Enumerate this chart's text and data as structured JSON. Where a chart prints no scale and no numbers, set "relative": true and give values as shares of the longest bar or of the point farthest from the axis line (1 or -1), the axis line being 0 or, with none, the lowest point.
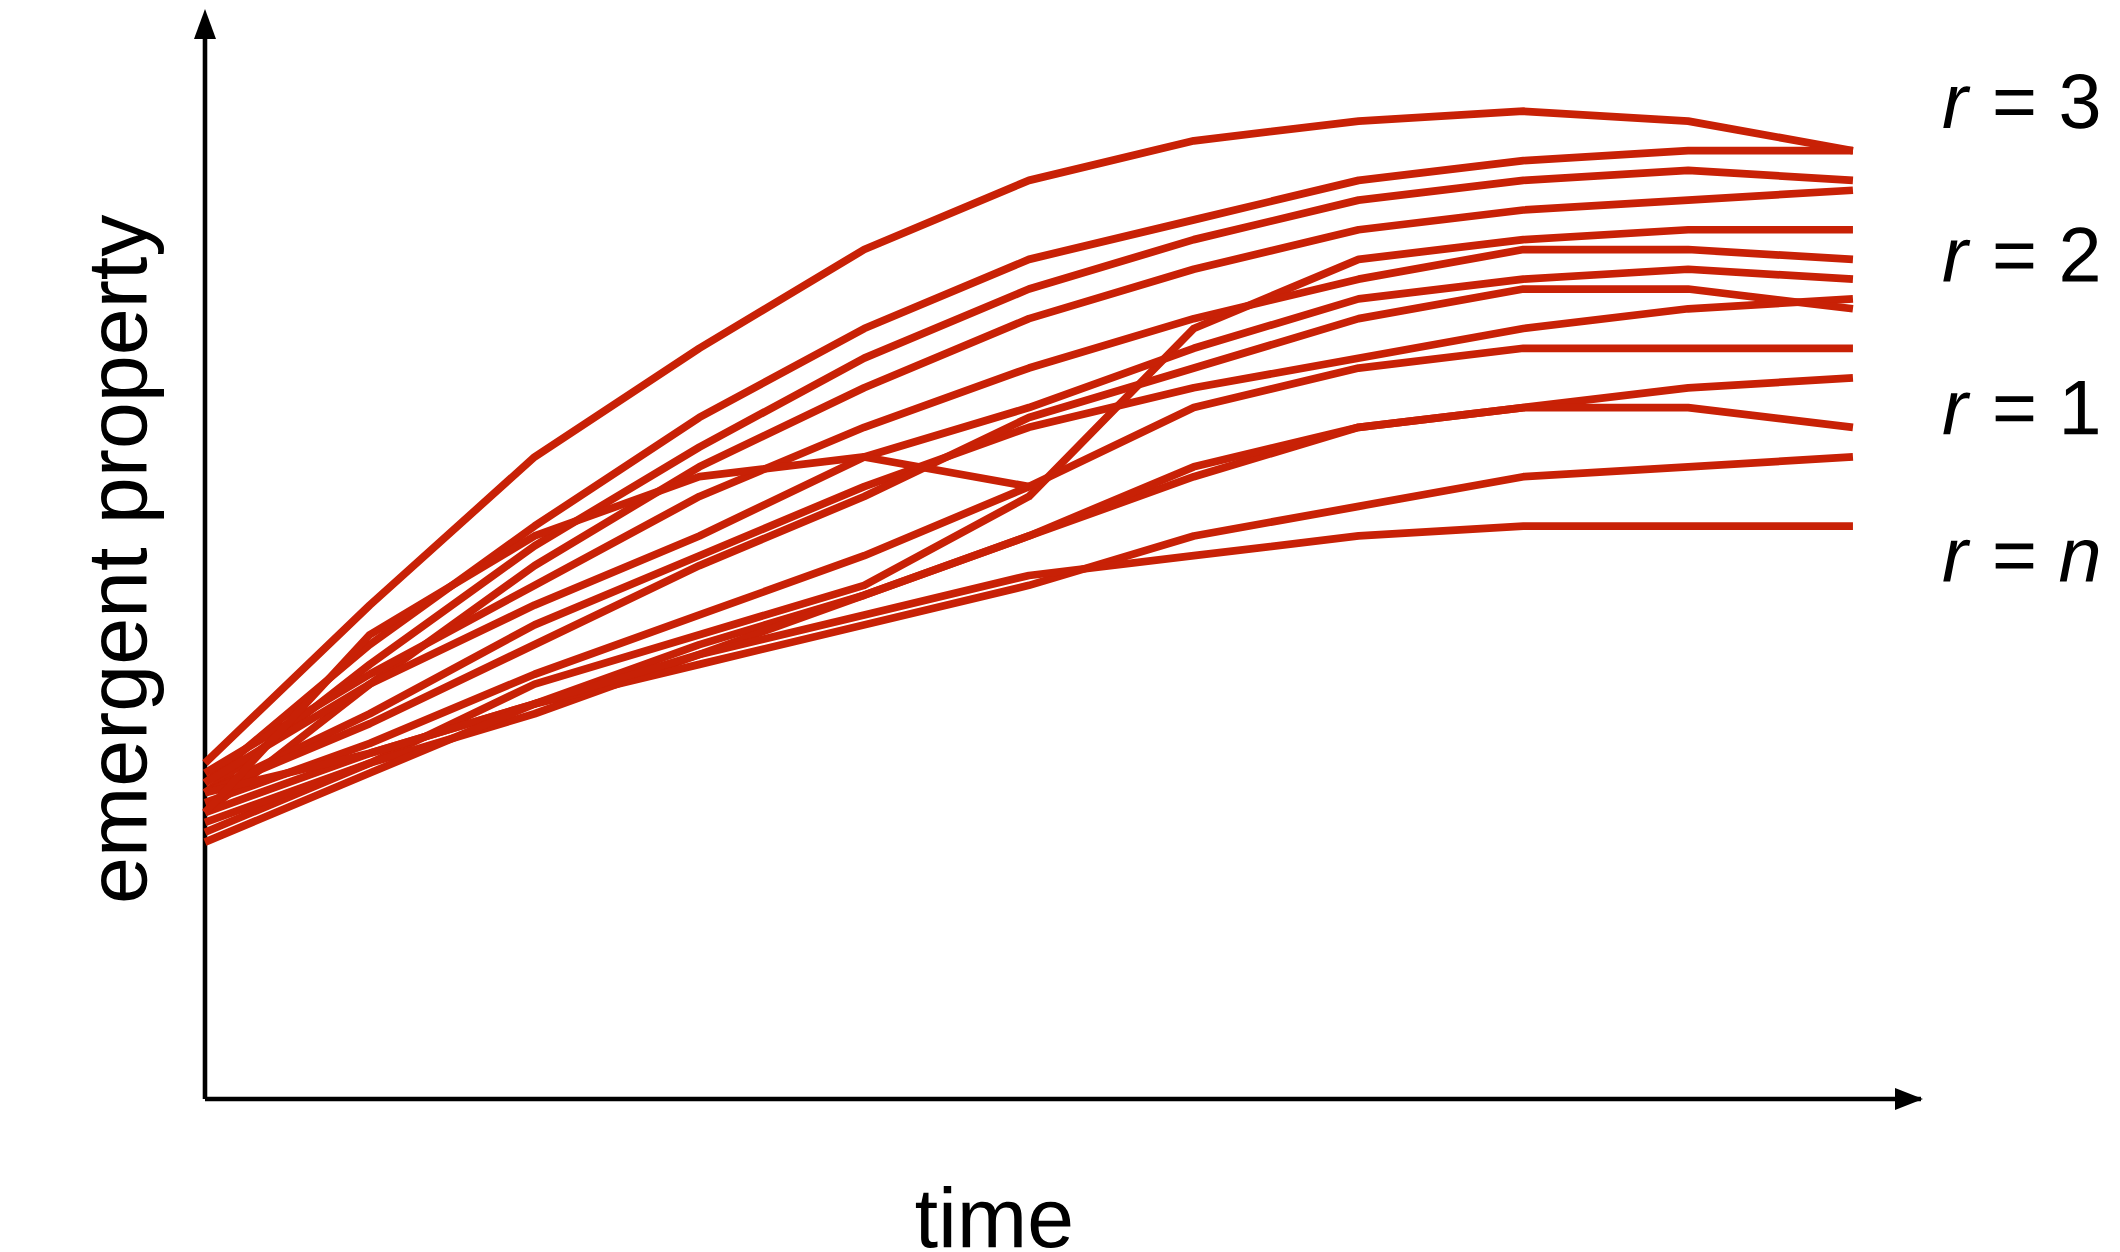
{
  "chart_data": {
    "type": "line",
    "relative": true,
    "xlabel": "time",
    "ylabel": "emergent property",
    "categories": [
      null,
      null,
      null,
      null,
      null,
      null,
      null,
      null,
      null,
      null,
      null
    ],
    "series": [
      {
        "color": "#c82106",
        "values": [
          0.34,
          0.5,
          0.65,
          0.76,
          0.86,
          0.93,
          0.97,
          0.99,
          1,
          0.99,
          0.96
        ]
      },
      {
        "color": "#c82106",
        "values": [
          0.32,
          0.46,
          0.58,
          0.69,
          0.78,
          0.85,
          0.89,
          0.93,
          0.95,
          0.96,
          0.96
        ]
      },
      {
        "color": "#c82106",
        "values": [
          0.31,
          0.44,
          0.56,
          0.66,
          0.75,
          0.82,
          0.87,
          0.91,
          0.93,
          0.94,
          0.93
        ]
      },
      {
        "color": "#c82106",
        "values": [
          0.29,
          0.42,
          0.54,
          0.64,
          0.72,
          0.79,
          0.84,
          0.88,
          0.9,
          0.91,
          0.92
        ]
      },
      {
        "color": "#c82106",
        "values": [
          0.27,
          0.34,
          0.42,
          0.47,
          0.52,
          0.61,
          0.78,
          0.85,
          0.87,
          0.88,
          0.88
        ]
      },
      {
        "color": "#c82106",
        "values": [
          0.33,
          0.43,
          0.52,
          0.61,
          0.68,
          0.74,
          0.79,
          0.83,
          0.86,
          0.86,
          0.85
        ]
      },
      {
        "color": "#c82106",
        "values": [
          0.32,
          0.42,
          0.5,
          0.57,
          0.65,
          0.7,
          0.76,
          0.81,
          0.83,
          0.84,
          0.83
        ]
      },
      {
        "color": "#c82106",
        "values": [
          0.31,
          0.39,
          0.48,
          0.55,
          0.62,
          0.68,
          0.72,
          0.75,
          0.78,
          0.8,
          0.81
        ]
      },
      {
        "color": "#c82106",
        "values": [
          0.31,
          0.38,
          0.46,
          0.54,
          0.61,
          0.69,
          0.74,
          0.79,
          0.82,
          0.82,
          0.8
        ]
      },
      {
        "color": "#c82106",
        "values": [
          0.3,
          0.36,
          0.43,
          0.49,
          0.55,
          0.62,
          0.7,
          0.74,
          0.76,
          0.76,
          0.76
        ]
      },
      {
        "color": "#c82106",
        "values": [
          0.29,
          0.35,
          0.4,
          0.46,
          0.51,
          0.57,
          0.63,
          0.68,
          0.7,
          0.72,
          0.73
        ]
      },
      {
        "color": "#c82106",
        "values": [
          0.28,
          0.34,
          0.39,
          0.45,
          0.51,
          0.57,
          0.64,
          0.68,
          0.7,
          0.7,
          0.68
        ]
      },
      {
        "color": "#c82106",
        "values": [
          0.31,
          0.35,
          0.4,
          0.44,
          0.48,
          0.52,
          0.57,
          0.6,
          0.63,
          0.64,
          0.65
        ]
      },
      {
        "color": "#c82106",
        "values": [
          0.26,
          0.33,
          0.4,
          0.45,
          0.49,
          0.53,
          0.55,
          0.57,
          0.58,
          0.58,
          0.58
        ]
      },
      {
        "color": "#c82106",
        "values": [
          0.29,
          0.47,
          0.57,
          0.63,
          0.65,
          0.62,
          null,
          null,
          null,
          null,
          null
        ]
      }
    ],
    "annotations": [
      "*r* = 3",
      "*r* = 2",
      "*r* = 1",
      "*r* = *n*"
    ]
  }
}
